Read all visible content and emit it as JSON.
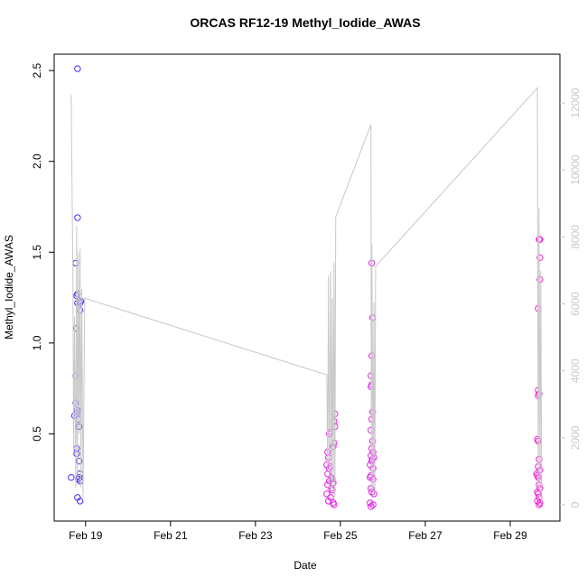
{
  "chart_data": {
    "type": "scatter",
    "title": "ORCAS RF12-19 Methyl_Iodide_AWAS",
    "x_label": "Date",
    "y_label": "Methyl_Iodide_AWAS",
    "xlim": [
      18.26,
      30.17
    ],
    "ylim": [
      0.02,
      2.59
    ],
    "y2lim": [
      -485,
      13456
    ],
    "xticks": [
      {
        "value": 19,
        "label": "Feb 19"
      },
      {
        "value": 21,
        "label": "Feb 21"
      },
      {
        "value": 23,
        "label": "Feb 23"
      },
      {
        "value": 25,
        "label": "Feb 25"
      },
      {
        "value": 27,
        "label": "Feb 27"
      },
      {
        "value": 29,
        "label": "Feb 29"
      }
    ],
    "yticks": [
      0.5,
      {
        "value": 1.0,
        "label": "1.0"
      },
      1.5,
      {
        "value": 2.0,
        "label": "2.0"
      },
      2.5
    ],
    "y2ticks": [
      0,
      2000,
      4000,
      6000,
      8000,
      10000,
      12000
    ],
    "y2_color": "#c8c8c8",
    "series": [
      {
        "color": "#4a2cf0",
        "x": [
          18.66,
          18.81,
          18.81,
          18.77,
          18.81,
          18.79,
          18.85,
          18.81,
          18.89,
          18.87,
          18.87,
          18.79,
          18.77,
          18.77,
          18.81,
          18.83,
          18.79,
          18.74,
          18.83,
          18.85,
          18.83,
          18.79,
          18.79,
          18.85,
          18.87,
          18.85,
          18.83,
          18.87,
          18.81,
          18.87
        ],
        "values": [
          0.26,
          2.51,
          1.69,
          1.44,
          1.27,
          1.26,
          1.23,
          1.22,
          1.23,
          1.22,
          1.18,
          1.08,
          0.82,
          0.67,
          0.63,
          0.62,
          0.61,
          0.6,
          0.58,
          0.54,
          0.54,
          0.42,
          0.39,
          0.35,
          0.28,
          0.26,
          0.25,
          0.24,
          0.15,
          0.13
        ]
      },
      {
        "color": "#e01ee6",
        "x": [
          24.87,
          24.85,
          24.87,
          24.74,
          24.77,
          24.85,
          24.83,
          24.7,
          24.72,
          24.68,
          24.77,
          24.74,
          24.7,
          24.79,
          24.81,
          24.74,
          24.83,
          24.7,
          24.79,
          24.81,
          24.68,
          24.77,
          24.72,
          24.83,
          24.85,
          25.74,
          25.76,
          25.74,
          25.72,
          25.74,
          25.72,
          25.76,
          25.74,
          25.72,
          25.76,
          25.74,
          25.77,
          25.72,
          25.79,
          25.76,
          25.74,
          25.7,
          25.77,
          25.72,
          25.7,
          25.77,
          25.72,
          25.74,
          25.79,
          25.7,
          25.77,
          25.72
        ],
        "values": [
          0.61,
          0.57,
          0.54,
          0.5,
          0.51,
          0.45,
          0.43,
          0.4,
          0.37,
          0.33,
          0.32,
          0.31,
          0.28,
          0.26,
          0.25,
          0.24,
          0.23,
          0.22,
          0.2,
          0.19,
          0.17,
          0.15,
          0.13,
          0.12,
          0.11,
          1.44,
          1.14,
          0.93,
          0.82,
          0.77,
          0.76,
          0.62,
          0.58,
          0.52,
          0.46,
          0.42,
          0.4,
          0.38,
          0.37,
          0.36,
          0.35,
          0.33,
          0.31,
          0.27,
          0.26,
          0.25,
          0.2,
          0.18,
          0.17,
          0.12,
          0.11,
          0.1
        ]
      },
      {
        "color": "#f21ad2",
        "x": [
          29.68,
          29.7,
          29.7,
          29.7,
          29.66,
          29.66,
          29.68,
          29.66,
          29.64,
          29.66,
          29.68,
          29.66,
          29.7,
          29.62,
          29.64,
          29.66,
          29.68,
          29.7,
          29.64,
          29.66,
          29.68,
          29.64,
          29.7,
          29.68
        ],
        "values": [
          1.57,
          1.57,
          1.47,
          1.35,
          1.19,
          0.74,
          0.72,
          0.71,
          0.47,
          0.46,
          0.36,
          0.32,
          0.3,
          0.28,
          0.27,
          0.26,
          0.22,
          0.2,
          0.18,
          0.17,
          0.15,
          0.13,
          0.12,
          0.11
        ]
      },
      {
        "color": "#c8c8c8",
        "axis": "y2",
        "line": true,
        "x": [
          18.66,
          18.7,
          18.72,
          18.74,
          18.77,
          18.79,
          18.81,
          18.83,
          18.85,
          18.87,
          18.89,
          18.91,
          18.94,
          18.98,
          24.68,
          24.7,
          24.72,
          24.74,
          24.77,
          24.79,
          24.81,
          24.83,
          24.85,
          24.87,
          24.89,
          25.72,
          25.73,
          25.74,
          25.77,
          25.79,
          25.81,
          25.83,
          29.64,
          29.66,
          29.68,
          29.7,
          29.72,
          29.74
        ],
        "values": [
          12260,
          6980,
          1590,
          5630,
          510,
          8330,
          780,
          7520,
          2130,
          7650,
          510,
          6440,
          240,
          6170,
          3880,
          1050,
          6850,
          510,
          6980,
          380,
          6170,
          510,
          7250,
          240,
          8600,
          11350,
          510,
          7790,
          380,
          6040,
          380,
          7120,
          12450,
          510,
          8870,
          240,
          6980,
          110
        ]
      }
    ]
  }
}
